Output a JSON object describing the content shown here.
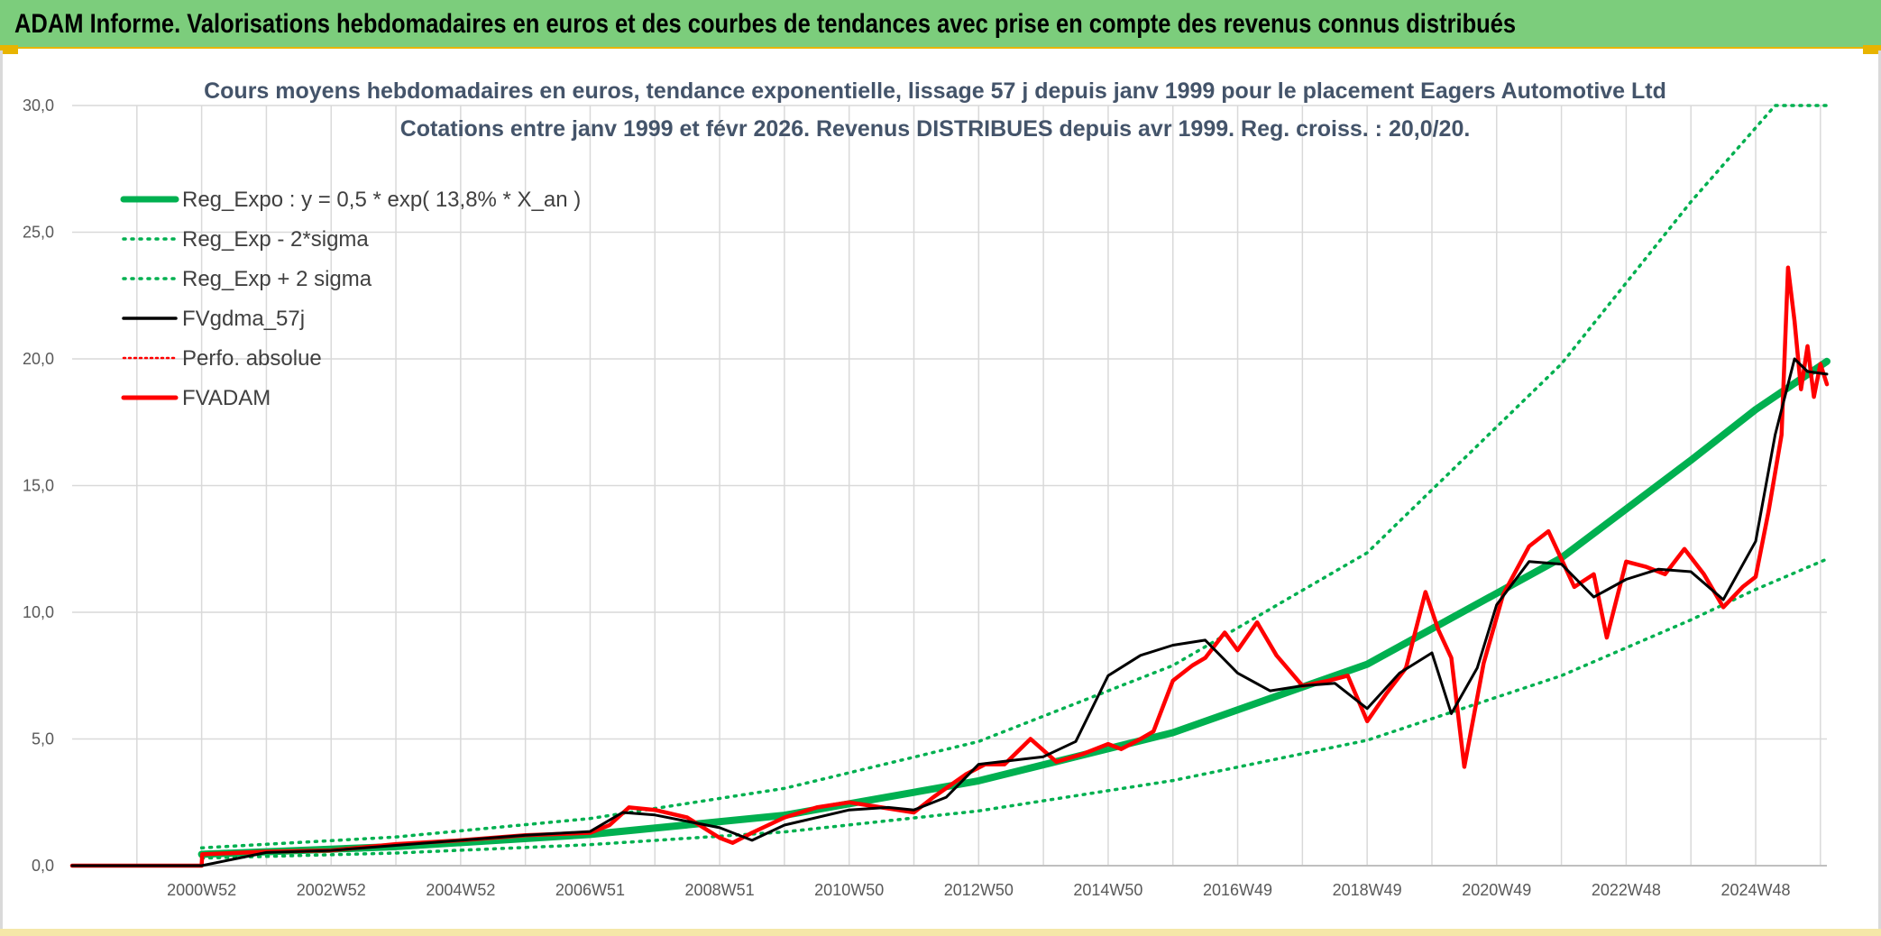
{
  "banner": {
    "title": "ADAM Informe. Valorisations hebdomadaires en euros et des courbes de tendances avec prise en compte des revenus connus distribués"
  },
  "colors": {
    "banner_bg": "#7ccd7c",
    "reg_expo": "#00b050",
    "fvgdma": "#000000",
    "fvadam": "#ff0000",
    "grid": "#d9d9d9"
  },
  "chart_data": {
    "type": "line",
    "title": "Cours moyens hebdomadaires en euros, tendance exponentielle, lissage 57 j depuis janv 1999 pour le placement Eagers Automotive Ltd",
    "subtitle": "Cotations entre janv 1999 et févr 2026. Revenus DISTRIBUES depuis avr 1999. Reg. croiss. : 20,0/20.",
    "xlabel": "",
    "ylabel": "",
    "ylim": [
      0,
      30
    ],
    "xlim": [
      1999.0,
      2026.1
    ],
    "y_ticks": [
      "0,0",
      "5,0",
      "10,0",
      "15,0",
      "20,0",
      "25,0",
      "30,0"
    ],
    "x_ticks": [
      "2000W52",
      "2002W52",
      "2004W52",
      "2006W51",
      "2008W51",
      "2010W50",
      "2012W50",
      "2014W50",
      "2016W49",
      "2018W49",
      "2020W49",
      "2022W48",
      "2024W48"
    ],
    "grid": true,
    "legend_position": "top-left",
    "legend": [
      {
        "key": "reg_expo",
        "label": "Reg_Expo : y = 0,5 * exp( 13,8% *  X_an )"
      },
      {
        "key": "reg_minus",
        "label": "Reg_Exp - 2*sigma"
      },
      {
        "key": "reg_plus",
        "label": "Reg_Exp + 2 sigma"
      },
      {
        "key": "fvgdma",
        "label": "FVgdma_57j"
      },
      {
        "key": "perfo",
        "label": "Perfo. absolue"
      },
      {
        "key": "fvadam",
        "label": "FVADAM"
      }
    ],
    "series": [
      {
        "name": "Reg_Expo : y = 0,5 * exp( 13,8% *  X_an )",
        "x": [
          2001.0,
          2004.0,
          2007.0,
          2010.0,
          2013.0,
          2016.0,
          2019.0,
          2022.0,
          2024.0,
          2025.0,
          2026.1
        ],
        "y": [
          0.45,
          0.75,
          1.23,
          1.99,
          3.35,
          5.25,
          7.95,
          12.15,
          16.0,
          18.0,
          19.9
        ]
      },
      {
        "name": "Reg_Exp - 2*sigma",
        "x": [
          2001.0,
          2004.0,
          2007.0,
          2010.0,
          2013.0,
          2016.0,
          2019.0,
          2022.0,
          2024.0,
          2025.0,
          2026.1
        ],
        "y": [
          0.3,
          0.5,
          0.83,
          1.33,
          2.16,
          3.36,
          4.95,
          7.5,
          9.7,
          10.9,
          12.1
        ]
      },
      {
        "name": "Reg_Exp + 2 sigma",
        "x": [
          2001.0,
          2004.0,
          2007.0,
          2010.0,
          2013.0,
          2016.0,
          2019.0,
          2022.0,
          2024.0,
          2025.3,
          2025.6,
          2026.1
        ],
        "y": [
          0.7,
          1.13,
          1.86,
          3.05,
          4.9,
          7.9,
          12.35,
          19.8,
          26.2,
          30.0,
          30.0,
          30.0
        ]
      },
      {
        "name": "FVgdma_57j",
        "x": [
          1999.0,
          2001.0,
          2002.0,
          2003.0,
          2004.0,
          2005.0,
          2006.0,
          2007.0,
          2007.5,
          2008.0,
          2009.0,
          2009.5,
          2010.0,
          2011.0,
          2011.6,
          2012.0,
          2012.5,
          2013.0,
          2014.0,
          2014.5,
          2015.0,
          2015.5,
          2016.0,
          2016.5,
          2017.0,
          2017.5,
          2018.0,
          2018.5,
          2019.0,
          2019.5,
          2020.0,
          2020.3,
          2020.7,
          2021.0,
          2021.5,
          2022.0,
          2022.5,
          2023.0,
          2023.5,
          2024.0,
          2024.5,
          2025.0,
          2025.3,
          2025.6,
          2025.8,
          2026.1
        ],
        "y": [
          0.0,
          0.0,
          0.52,
          0.6,
          0.8,
          1.0,
          1.2,
          1.35,
          2.1,
          2.0,
          1.5,
          1.0,
          1.6,
          2.2,
          2.3,
          2.2,
          2.7,
          4.0,
          4.3,
          4.9,
          7.5,
          8.3,
          8.7,
          8.9,
          7.6,
          6.9,
          7.1,
          7.2,
          6.2,
          7.6,
          8.4,
          6.0,
          7.8,
          10.3,
          12.0,
          11.9,
          10.6,
          11.3,
          11.7,
          11.6,
          10.5,
          12.8,
          17.0,
          20.0,
          19.5,
          19.4
        ]
      },
      {
        "name": "FVADAM",
        "x": [
          1999.0,
          2001.0,
          2001.01,
          2002.0,
          2003.0,
          2004.0,
          2005.0,
          2006.0,
          2007.0,
          2007.3,
          2007.6,
          2008.0,
          2008.5,
          2009.0,
          2009.2,
          2009.5,
          2010.0,
          2010.5,
          2011.0,
          2011.5,
          2012.0,
          2012.3,
          2012.8,
          2013.1,
          2013.4,
          2013.8,
          2014.2,
          2014.6,
          2015.0,
          2015.2,
          2015.5,
          2015.7,
          2016.0,
          2016.3,
          2016.5,
          2016.8,
          2017.0,
          2017.3,
          2017.6,
          2018.0,
          2018.4,
          2018.7,
          2019.0,
          2019.3,
          2019.6,
          2019.9,
          2020.1,
          2020.3,
          2020.5,
          2020.8,
          2021.1,
          2021.5,
          2021.8,
          2022.0,
          2022.2,
          2022.5,
          2022.7,
          2023.0,
          2023.3,
          2023.6,
          2023.9,
          2024.2,
          2024.5,
          2024.8,
          2025.0,
          2025.2,
          2025.4,
          2025.5,
          2025.6,
          2025.7,
          2025.8,
          2025.9,
          2026.0,
          2026.1
        ],
        "y": [
          0.0,
          0.0,
          0.45,
          0.55,
          0.6,
          0.85,
          1.0,
          1.2,
          1.3,
          1.6,
          2.3,
          2.2,
          1.9,
          1.1,
          0.9,
          1.3,
          1.9,
          2.3,
          2.5,
          2.3,
          2.1,
          2.7,
          3.6,
          4.0,
          4.0,
          5.0,
          4.1,
          4.4,
          4.8,
          4.6,
          5.0,
          5.3,
          7.3,
          7.9,
          8.2,
          9.2,
          8.5,
          9.6,
          8.3,
          7.1,
          7.3,
          7.5,
          5.7,
          6.8,
          7.8,
          10.8,
          9.3,
          8.2,
          3.9,
          8.0,
          10.7,
          12.6,
          13.2,
          12.1,
          11.0,
          11.5,
          9.0,
          12.0,
          11.8,
          11.5,
          12.5,
          11.5,
          10.2,
          11.0,
          11.4,
          14.0,
          17.0,
          23.6,
          21.5,
          18.8,
          20.5,
          18.5,
          19.8,
          19.0
        ]
      }
    ]
  }
}
